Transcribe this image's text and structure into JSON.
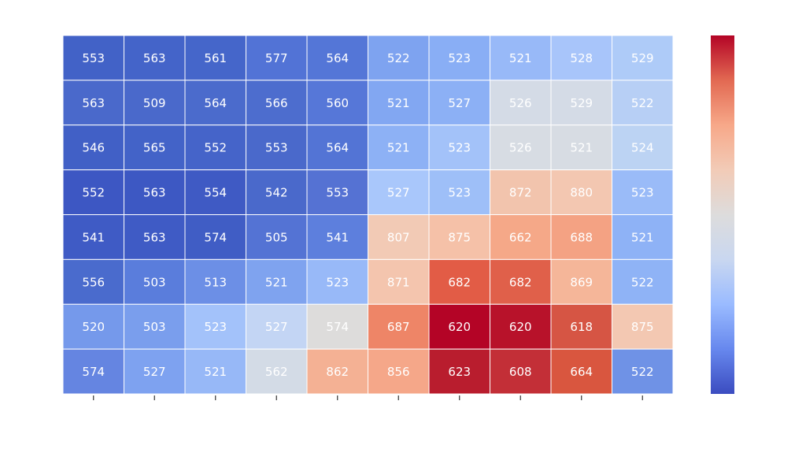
{
  "chart_data": {
    "type": "heatmap",
    "categories": [
      null,
      null,
      null,
      null,
      null,
      null,
      null,
      null,
      null,
      null
    ],
    "values": [
      [
        553,
        563,
        561,
        577,
        564,
        522,
        523,
        521,
        528,
        529
      ],
      [
        563,
        509,
        564,
        566,
        560,
        521,
        527,
        526,
        529,
        522
      ],
      [
        546,
        565,
        552,
        553,
        564,
        521,
        523,
        526,
        521,
        524
      ],
      [
        552,
        563,
        554,
        542,
        553,
        527,
        523,
        872,
        880,
        523
      ],
      [
        541,
        563,
        574,
        505,
        541,
        807,
        875,
        662,
        688,
        521
      ],
      [
        556,
        503,
        513,
        521,
        523,
        871,
        682,
        682,
        869,
        522
      ],
      [
        520,
        503,
        523,
        527,
        574,
        687,
        620,
        620,
        618,
        875
      ],
      [
        574,
        527,
        521,
        562,
        862,
        856,
        623,
        608,
        664,
        522
      ]
    ],
    "colors": [
      [
        "#4262c7",
        "#4464c9",
        "#4566ca",
        "#5273d6",
        "#5476d7",
        "#7ea3f0",
        "#89aef5",
        "#98b9f8",
        "#a8c5fa",
        "#aecbf8"
      ],
      [
        "#4a69cb",
        "#4a69cb",
        "#4b6bcc",
        "#4d6dce",
        "#5677d8",
        "#82a7f2",
        "#8cb0f5",
        "#d4dbe6",
        "#d4dbe6",
        "#b7cff5"
      ],
      [
        "#4160c6",
        "#4363c8",
        "#4564c9",
        "#4a69cb",
        "#5374d5",
        "#8db1f5",
        "#a3c2f9",
        "#d7dce3",
        "#d7dce3",
        "#bcd3f3"
      ],
      [
        "#3d57c3",
        "#3d58c3",
        "#3f5ac4",
        "#4a69cb",
        "#5572d3",
        "#a9c7fb",
        "#9ebff8",
        "#f2c4ad",
        "#f3c7b1",
        "#9abbf8"
      ],
      [
        "#3f5bc5",
        "#3f5bc5",
        "#405dc5",
        "#5473d4",
        "#5d7fdd",
        "#f2cab5",
        "#f5c1a8",
        "#f5a888",
        "#f4a283",
        "#8eb2f6"
      ],
      [
        "#4a6bcd",
        "#5a7ddc",
        "#6c8fe6",
        "#7fa3ef",
        "#98b9f8",
        "#f4c5ae",
        "#e25c46",
        "#e0604a",
        "#f5b699",
        "#8fb3f6"
      ],
      [
        "#7599eb",
        "#7a9eed",
        "#a3c2fa",
        "#c3d5f4",
        "#dddcdb",
        "#ee8567",
        "#b40426",
        "#b8122a",
        "#d65544",
        "#f3c8b2"
      ],
      [
        "#6585e1",
        "#7ea2f0",
        "#97b8f7",
        "#d3dbe6",
        "#f4b194",
        "#f5a789",
        "#b91d2e",
        "#c32f37",
        "#d9563f",
        "#6f92e6"
      ]
    ],
    "colormap": [
      "#3b4cc0",
      "#6788ee",
      "#9abbff",
      "#c9d7f0",
      "#dddcdc",
      "#f2cbb7",
      "#f7a889",
      "#e26952",
      "#b40426"
    ]
  }
}
